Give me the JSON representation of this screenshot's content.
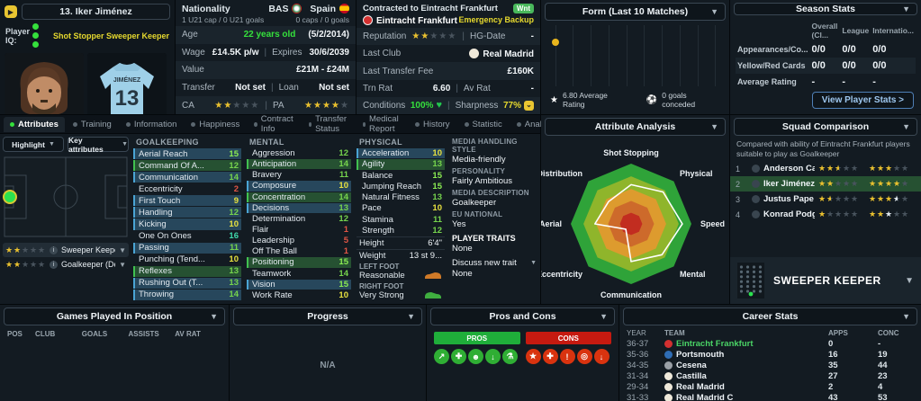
{
  "player": {
    "number_name": "13. Iker Jiménez",
    "iq_label": "Player IQ:",
    "iq_dots": 3,
    "roles_text": "Shot Stopper  Sweeper Keeper",
    "jersey_name": "JIMÉNEZ",
    "jersey_number": "13"
  },
  "nationality": {
    "title": "Nationality",
    "nation_left": "BAS",
    "nation_right": "Spain",
    "caps_left": "1 U21 cap / 0 U21 goals",
    "caps_right": "0 caps / 0 goals",
    "age_label": "Age",
    "age_value": "22 years old",
    "age_date": "(5/2/2014)",
    "wage_label": "Wage",
    "wage_value": "£14.5K p/w",
    "expires_label": "Expires",
    "expires_value": "30/6/2039",
    "value_label": "Value",
    "value_value": "£21M - £24M",
    "transfer_label": "Transfer",
    "transfer_value": "Not set",
    "loan_label": "Loan",
    "loan_value": "Not set",
    "ca_label": "CA",
    "ca_stars": "FF---",
    "pa_label": "PA",
    "pa_stars": "FFFF-"
  },
  "contract": {
    "title": "Contracted to Eintracht Frankfurt",
    "wanted_badge": "Wnt",
    "club": "Eintracht Frankfurt",
    "status": "Emergency Backup",
    "reputation_label": "Reputation",
    "reputation_stars": "FF---",
    "hg_label": "HG-Date",
    "hg_value": "-",
    "last_club_label": "Last Club",
    "last_club": "Real Madrid",
    "fee_label": "Last Transfer Fee",
    "fee_value": "£160K",
    "trn_label": "Trn Rat",
    "trn_value": "6.60",
    "av_label": "Av Rat",
    "av_value": "-",
    "cond_label": "Conditions",
    "cond_value": "100%",
    "sharp_label": "Sharpness",
    "sharp_value": "77%"
  },
  "form": {
    "title": "Form (Last 10 Matches)",
    "avg_rating": "6.80 Average Rating",
    "goals_conceded": "0 goals conceded"
  },
  "season_stats": {
    "title": "Season Stats",
    "columns": [
      "Overall (Cl...",
      "League",
      "Internatio..."
    ],
    "rows": [
      {
        "label": "Appearances/Co...",
        "values": [
          "0/0",
          "0/0",
          "0/0"
        ]
      },
      {
        "label": "Yellow/Red Cards",
        "values": [
          "0/0",
          "0/0",
          "0/0"
        ]
      },
      {
        "label": "Average Rating",
        "values": [
          "-",
          "-",
          "-"
        ]
      }
    ],
    "button": "View Player Stats >"
  },
  "tabs": [
    {
      "label": "Attributes",
      "active": true
    },
    {
      "label": "Training",
      "active": false
    },
    {
      "label": "Information",
      "active": false
    },
    {
      "label": "Happiness",
      "active": false
    },
    {
      "label": "Contract Info",
      "active": false
    },
    {
      "label": "Transfer Status",
      "active": false
    },
    {
      "label": "Medical Report",
      "active": false
    },
    {
      "label": "History",
      "active": false
    },
    {
      "label": "Statistic",
      "active": false
    },
    {
      "label": "Analysis",
      "active": false
    }
  ],
  "left_panel": {
    "highlight_label": "Highlight",
    "key_label": "Key attributes",
    "roles": [
      {
        "stars": "FF---",
        "name": "Sweeper Keeper (De)",
        "highlighted": true
      },
      {
        "stars": "FF---",
        "name": "Goalkeeper (De)",
        "highlighted": false
      }
    ]
  },
  "attributes": {
    "goalkeeping_header": "GOALKEEPING",
    "mental_header": "MENTAL",
    "physical_header": "PHYSICAL",
    "goalkeeping": [
      {
        "name": "Aerial Reach",
        "value": 15,
        "highlight": "blue"
      },
      {
        "name": "Command Of A...",
        "value": 12,
        "highlight": "green"
      },
      {
        "name": "Communication",
        "value": 14,
        "highlight": "blue"
      },
      {
        "name": "Eccentricity",
        "value": 2,
        "highlight": "none"
      },
      {
        "name": "First Touch",
        "value": 9,
        "highlight": "blue"
      },
      {
        "name": "Handling",
        "value": 12,
        "highlight": "blue"
      },
      {
        "name": "Kicking",
        "value": 10,
        "highlight": "blue"
      },
      {
        "name": "One On Ones",
        "value": 16,
        "highlight": "none"
      },
      {
        "name": "Passing",
        "value": 11,
        "highlight": "blue"
      },
      {
        "name": "Punching (Tend...",
        "value": 10,
        "highlight": "none"
      },
      {
        "name": "Reflexes",
        "value": 13,
        "highlight": "green"
      },
      {
        "name": "Rushing Out (T...",
        "value": 13,
        "highlight": "blue"
      },
      {
        "name": "Throwing",
        "value": 14,
        "highlight": "blue"
      }
    ],
    "mental": [
      {
        "name": "Aggression",
        "value": 12,
        "highlight": "none"
      },
      {
        "name": "Anticipation",
        "value": 14,
        "highlight": "green"
      },
      {
        "name": "Bravery",
        "value": 11,
        "highlight": "none"
      },
      {
        "name": "Composure",
        "value": 10,
        "highlight": "blue"
      },
      {
        "name": "Concentration",
        "value": 14,
        "highlight": "green"
      },
      {
        "name": "Decisions",
        "value": 13,
        "highlight": "blue"
      },
      {
        "name": "Determination",
        "value": 12,
        "highlight": "none"
      },
      {
        "name": "Flair",
        "value": 1,
        "highlight": "none"
      },
      {
        "name": "Leadership",
        "value": 5,
        "highlight": "none"
      },
      {
        "name": "Off The Ball",
        "value": 1,
        "highlight": "none"
      },
      {
        "name": "Positioning",
        "value": 15,
        "highlight": "green"
      },
      {
        "name": "Teamwork",
        "value": 14,
        "highlight": "none"
      },
      {
        "name": "Vision",
        "value": 15,
        "highlight": "blue"
      },
      {
        "name": "Work Rate",
        "value": 10,
        "highlight": "none"
      }
    ],
    "physical": [
      {
        "name": "Acceleration",
        "value": 10,
        "highlight": "blue"
      },
      {
        "name": "Agility",
        "value": 13,
        "highlight": "green"
      },
      {
        "name": "Balance",
        "value": 15,
        "highlight": "none"
      },
      {
        "name": "Jumping Reach",
        "value": 15,
        "highlight": "none"
      },
      {
        "name": "Natural Fitness",
        "value": 13,
        "highlight": "none"
      },
      {
        "name": "Pace",
        "value": 10,
        "highlight": "none"
      },
      {
        "name": "Stamina",
        "value": 11,
        "highlight": "none"
      },
      {
        "name": "Strength",
        "value": 12,
        "highlight": "none"
      }
    ]
  },
  "physical_extra": {
    "height_label": "Height",
    "height_value": "6'4\"",
    "weight_label": "Weight",
    "weight_value": "13 st 9...",
    "left_foot_label": "LEFT FOOT",
    "left_foot_value": "Reasonable",
    "right_foot_label": "RIGHT FOOT",
    "right_foot_value": "Very Strong"
  },
  "media": {
    "sections": [
      {
        "label": "MEDIA HANDLING STYLE",
        "value": "Media-friendly"
      },
      {
        "label": "PERSONALITY",
        "value": "Fairly Ambitious"
      },
      {
        "label": "MEDIA DESCRIPTION",
        "value": "Goalkeeper"
      },
      {
        "label": "EU NATIONAL",
        "value": "Yes"
      }
    ],
    "traits_label": "PLAYER TRAITS",
    "traits_value": "None",
    "discuss_label": "Discuss new trait",
    "discuss_value": "None"
  },
  "chart_data": [
    {
      "type": "radar",
      "title": "Attribute Analysis",
      "categories": [
        "Shot Stopping",
        "Physical",
        "Speed",
        "Mental",
        "Communication",
        "Eccentricity",
        "Aerial",
        "Distribution"
      ],
      "values": [
        13,
        15,
        17,
        14.5,
        12.5,
        2.5,
        12,
        10.5
      ],
      "max": 20,
      "ring_fractions": [
        1,
        0.79,
        0.58,
        0.38,
        0.185
      ],
      "ring_colors": [
        "#2fa339",
        "#8fb52b",
        "#dd9b2e",
        "#cd6a2b",
        "#c22d20"
      ],
      "line_color": "#ffffff"
    },
    {
      "type": "scatter",
      "title": "Form (Last 10 Matches)",
      "x": [
        1
      ],
      "y": [
        6.8
      ],
      "xlim": [
        1,
        10
      ],
      "ylim": [
        5.8,
        7.2
      ],
      "point_color": "#e9b51d",
      "grid_columns": 10
    }
  ],
  "squad_comparison": {
    "title": "Squad Comparison",
    "description": "Compared with ability of Eintracht Frankfurt players suitable to play as Goalkeeper",
    "rows": [
      {
        "rank": "1",
        "name": "Anderson Cardoso",
        "ca": "FFH--",
        "pa": "FFF--",
        "highlighted": false
      },
      {
        "rank": "2",
        "name": "Iker Jiménez",
        "ca": "FF---",
        "pa": "FFFF-",
        "highlighted": true
      },
      {
        "rank": "3",
        "name": "Justus Pape",
        "ca": "FH---",
        "pa": "FFFw-",
        "highlighted": false
      },
      {
        "rank": "4",
        "name": "Konrad Podgórski",
        "ca": "F----",
        "pa": "FFW--",
        "highlighted": false
      }
    ],
    "sweeper_label": "SWEEPER KEEPER"
  },
  "bottom": {
    "games": {
      "title": "Games Played In Position",
      "columns": [
        "POS",
        "CLUB",
        "GOALS",
        "ASSISTS",
        "AV RAT"
      ]
    },
    "progress": {
      "title": "Progress",
      "empty": "N/A"
    },
    "proscons": {
      "title": "Pros and Cons",
      "pros_label": "PROS",
      "cons_label": "CONS",
      "pros_icons": [
        {
          "name": "improvement-arrow-icon",
          "glyph": "↗"
        },
        {
          "name": "personal-trainer-icon",
          "glyph": "✚"
        },
        {
          "name": "mentality-icon",
          "glyph": "☻"
        },
        {
          "name": "heading-ability-icon",
          "glyph": "↓"
        },
        {
          "name": "experiment-flask-icon",
          "glyph": "⚗"
        }
      ],
      "cons_icons": [
        {
          "name": "star-rating-icon",
          "glyph": "★"
        },
        {
          "name": "injury-cross-icon",
          "glyph": "✚"
        },
        {
          "name": "warning-gear-icon",
          "glyph": "!"
        },
        {
          "name": "target-icon",
          "glyph": "◎"
        },
        {
          "name": "aerial-drop-icon",
          "glyph": "↓"
        }
      ]
    },
    "career": {
      "title": "Career Stats",
      "columns": [
        "YEAR",
        "TEAM",
        "APPS",
        "CONC"
      ],
      "rows": [
        {
          "year": "36-37",
          "team": "Eintracht Frankfurt",
          "apps": "0",
          "conc": "-",
          "team_color": "#4ad466",
          "badge_color": "#d33030"
        },
        {
          "year": "35-36",
          "team": "Portsmouth",
          "apps": "16",
          "conc": "19",
          "team_color": "#eef3f7",
          "badge_color": "#2f6db5"
        },
        {
          "year": "34-35",
          "team": "Cesena",
          "apps": "35",
          "conc": "44",
          "team_color": "#eef3f7",
          "badge_color": "#9aa0a6"
        },
        {
          "year": "31-34",
          "team": "Castilla",
          "apps": "27",
          "conc": "23",
          "team_color": "#eef3f7",
          "badge_color": "#efe9da"
        },
        {
          "year": "29-34",
          "team": "Real Madrid",
          "apps": "2",
          "conc": "4",
          "team_color": "#eef3f7",
          "badge_color": "#efe9da"
        },
        {
          "year": "31-33",
          "team": "Real Madrid C",
          "apps": "43",
          "conc": "53",
          "team_color": "#eef3f7",
          "badge_color": "#efe9da"
        }
      ]
    }
  },
  "colors": {
    "accent_green": "#35e03c",
    "accent_yellow": "#e9c531",
    "star_gold": "#eac12f",
    "highlight_blue": "#27475c",
    "highlight_green": "#265132",
    "jersey_blue": "#9fd0e8"
  }
}
